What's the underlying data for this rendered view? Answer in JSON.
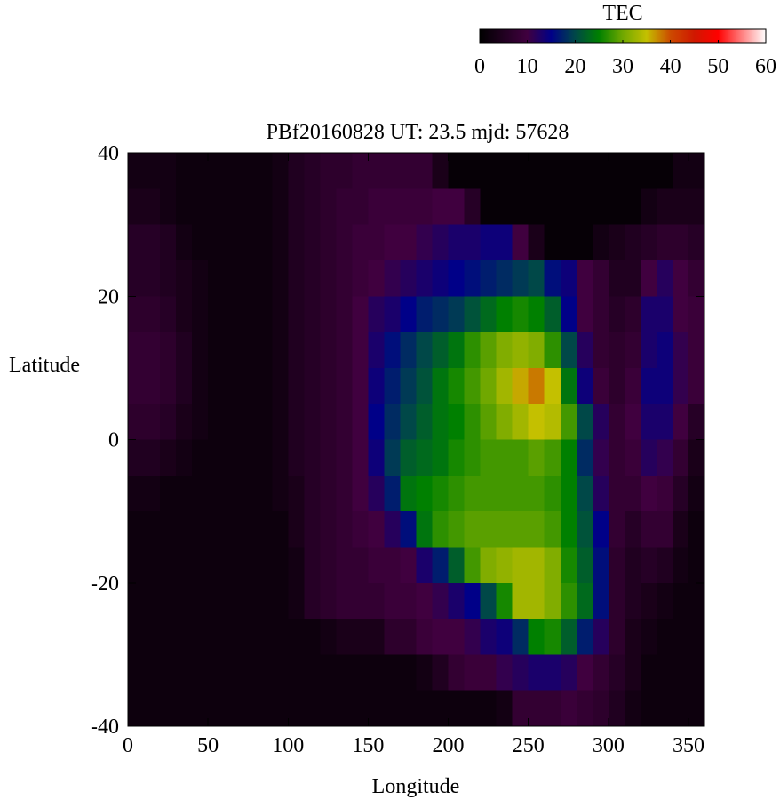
{
  "chart_data": {
    "type": "heatmap",
    "title": "PBf20160828  UT: 23.5  mjd: 57628",
    "xlabel": "Longitude",
    "ylabel": "Latitude",
    "xlim": [
      0,
      360
    ],
    "ylim": [
      -40,
      40
    ],
    "xticks": [
      0,
      50,
      100,
      150,
      200,
      250,
      300,
      350
    ],
    "yticks": [
      40,
      20,
      0,
      -20,
      -40
    ],
    "x_cell_size": 10,
    "y_cell_size": 5,
    "lat_rows_top_to_bottom": [
      37.5,
      32.5,
      27.5,
      22.5,
      17.5,
      12.5,
      7.5,
      2.5,
      -2.5,
      -7.5,
      -12.5,
      -17.5,
      -22.5,
      -27.5,
      -32.5,
      -37.5
    ],
    "colorbar": {
      "label": "TEC",
      "range": [
        0,
        60
      ],
      "ticks": [
        0,
        10,
        20,
        30,
        40,
        50,
        60
      ],
      "stops": [
        [
          0,
          "#000000"
        ],
        [
          10,
          "#40003f"
        ],
        [
          15,
          "#000088"
        ],
        [
          20,
          "#004848"
        ],
        [
          25,
          "#008000"
        ],
        [
          30,
          "#70a800"
        ],
        [
          35,
          "#c4c000"
        ],
        [
          40,
          "#cc4a00"
        ],
        [
          45,
          "#d01800"
        ],
        [
          50,
          "#ff0000"
        ],
        [
          55,
          "#ff8080"
        ],
        [
          60,
          "#ffffff"
        ]
      ]
    },
    "values": [
      [
        3,
        3,
        3,
        2,
        2,
        2,
        2,
        2,
        2,
        3,
        5,
        6,
        7,
        7,
        8,
        8,
        8,
        8,
        8,
        4,
        1,
        1,
        1,
        1,
        1,
        1,
        1,
        1,
        1,
        1,
        1,
        1,
        1,
        1,
        3,
        3
      ],
      [
        4,
        4,
        3,
        2,
        2,
        2,
        2,
        2,
        2,
        3,
        5,
        6,
        7,
        8,
        8,
        9,
        9,
        9,
        9,
        10,
        10,
        6,
        1,
        1,
        1,
        1,
        1,
        1,
        1,
        1,
        1,
        1,
        3,
        4,
        4,
        4
      ],
      [
        6,
        6,
        5,
        3,
        2,
        2,
        2,
        2,
        2,
        3,
        5,
        6,
        7,
        8,
        9,
        9,
        10,
        10,
        11,
        12,
        13,
        13,
        14,
        14,
        10,
        4,
        1,
        1,
        1,
        3,
        4,
        5,
        6,
        7,
        7,
        6
      ],
      [
        6,
        6,
        5,
        4,
        3,
        2,
        2,
        2,
        2,
        3,
        5,
        6,
        7,
        8,
        9,
        10,
        11,
        12,
        13,
        14,
        15,
        16,
        17,
        18,
        19,
        20,
        16,
        14,
        10,
        8,
        5,
        5,
        10,
        12,
        10,
        8
      ],
      [
        7,
        7,
        6,
        4,
        3,
        2,
        2,
        2,
        2,
        3,
        5,
        6,
        7,
        8,
        10,
        12,
        13,
        15,
        17,
        18,
        19,
        21,
        23,
        25,
        26,
        25,
        22,
        15,
        10,
        8,
        6,
        7,
        13,
        13,
        10,
        9
      ],
      [
        8,
        8,
        7,
        5,
        3,
        2,
        2,
        2,
        2,
        3,
        5,
        6,
        7,
        8,
        10,
        13,
        16,
        18,
        20,
        22,
        24,
        27,
        29,
        31,
        32,
        31,
        27,
        20,
        12,
        8,
        7,
        8,
        13,
        14,
        11,
        9
      ],
      [
        8,
        8,
        7,
        5,
        3,
        2,
        2,
        2,
        2,
        3,
        5,
        6,
        7,
        8,
        10,
        14,
        17,
        19,
        21,
        24,
        26,
        28,
        30,
        33,
        36,
        38,
        35,
        24,
        14,
        9,
        7,
        9,
        14,
        14,
        11,
        9
      ],
      [
        7,
        7,
        6,
        4,
        3,
        2,
        2,
        2,
        2,
        3,
        5,
        6,
        7,
        8,
        10,
        15,
        18,
        20,
        22,
        24,
        25,
        27,
        29,
        31,
        33,
        35,
        34,
        28,
        20,
        12,
        8,
        10,
        13,
        13,
        10,
        6
      ],
      [
        5,
        5,
        4,
        3,
        2,
        2,
        2,
        2,
        2,
        3,
        5,
        6,
        7,
        8,
        10,
        14,
        19,
        22,
        23,
        24,
        26,
        27,
        28,
        28,
        28,
        29,
        28,
        25,
        18,
        11,
        8,
        9,
        12,
        11,
        8,
        4
      ],
      [
        3,
        3,
        2,
        2,
        2,
        2,
        2,
        2,
        2,
        3,
        4,
        6,
        7,
        8,
        10,
        12,
        17,
        24,
        25,
        26,
        27,
        28,
        28,
        28,
        28,
        28,
        27,
        25,
        20,
        12,
        8,
        8,
        10,
        9,
        6,
        3
      ],
      [
        2,
        2,
        2,
        2,
        2,
        2,
        2,
        2,
        2,
        2,
        4,
        6,
        7,
        8,
        9,
        10,
        12,
        16,
        24,
        27,
        28,
        29,
        29,
        29,
        29,
        29,
        28,
        25,
        21,
        15,
        8,
        6,
        8,
        8,
        4,
        2
      ],
      [
        2,
        2,
        2,
        2,
        2,
        2,
        2,
        2,
        2,
        2,
        3,
        6,
        7,
        8,
        8,
        9,
        9,
        10,
        13,
        17,
        22,
        28,
        31,
        32,
        33,
        33,
        31,
        26,
        22,
        16,
        7,
        5,
        6,
        5,
        3,
        2
      ],
      [
        2,
        2,
        2,
        2,
        2,
        2,
        2,
        2,
        2,
        2,
        3,
        6,
        7,
        8,
        8,
        8,
        9,
        9,
        10,
        11,
        13,
        15,
        20,
        26,
        33,
        33,
        31,
        27,
        23,
        16,
        7,
        5,
        4,
        3,
        2,
        2
      ],
      [
        2,
        2,
        2,
        2,
        2,
        2,
        2,
        2,
        2,
        2,
        2,
        2,
        3,
        4,
        4,
        4,
        7,
        7,
        9,
        10,
        10,
        11,
        13,
        14,
        18,
        25,
        26,
        22,
        17,
        12,
        7,
        4,
        3,
        2,
        2,
        2
      ],
      [
        2,
        2,
        2,
        2,
        2,
        2,
        2,
        2,
        2,
        2,
        2,
        2,
        2,
        2,
        2,
        2,
        2,
        2,
        3,
        5,
        8,
        9,
        9,
        11,
        12,
        13,
        13,
        12,
        10,
        8,
        6,
        4,
        2,
        2,
        2,
        2
      ],
      [
        2,
        2,
        2,
        2,
        2,
        2,
        2,
        2,
        2,
        2,
        2,
        2,
        2,
        2,
        2,
        2,
        2,
        2,
        2,
        2,
        2,
        2,
        2,
        3,
        8,
        8,
        8,
        9,
        8,
        7,
        5,
        3,
        2,
        2,
        2,
        2
      ]
    ]
  }
}
